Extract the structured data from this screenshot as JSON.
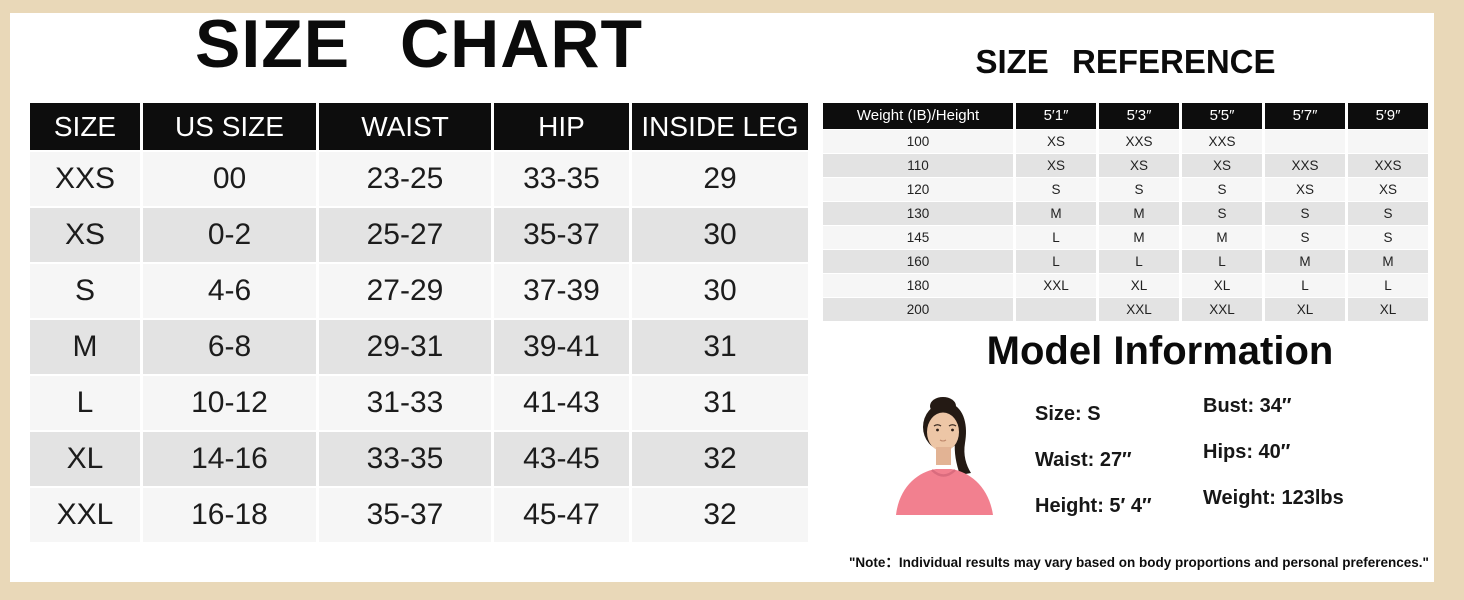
{
  "colors": {
    "frame_background": "#e9d8b8",
    "panel_background": "#ffffff",
    "table_header": "#0d0d0d",
    "row_light": "#f6f6f6",
    "row_dark": "#e3e3e3",
    "model_top_pink": "#f2808f"
  },
  "size_chart": {
    "title": "SIZE CHART",
    "columns": [
      "SIZE",
      "US SIZE",
      "WAIST",
      "HIP",
      "INSIDE LEG"
    ],
    "rows": [
      [
        "XXS",
        "00",
        "23-25",
        "33-35",
        "29"
      ],
      [
        "XS",
        "0-2",
        "25-27",
        "35-37",
        "30"
      ],
      [
        "S",
        "4-6",
        "27-29",
        "37-39",
        "30"
      ],
      [
        "M",
        "6-8",
        "29-31",
        "39-41",
        "31"
      ],
      [
        "L",
        "10-12",
        "31-33",
        "41-43",
        "31"
      ],
      [
        "XL",
        "14-16",
        "33-35",
        "43-45",
        "32"
      ],
      [
        "XXL",
        "16-18",
        "35-37",
        "45-47",
        "32"
      ]
    ]
  },
  "size_reference": {
    "title": "SIZE REFERENCE",
    "columns": [
      "Weight (IB)/Height",
      "5′1″",
      "5′3″",
      "5′5″",
      "5′7″",
      "5′9″"
    ],
    "rows": [
      [
        "100",
        "XS",
        "XXS",
        "XXS",
        "",
        ""
      ],
      [
        "110",
        "XS",
        "XS",
        "XS",
        "XXS",
        "XXS"
      ],
      [
        "120",
        "S",
        "S",
        "S",
        "XS",
        "XS"
      ],
      [
        "130",
        "M",
        "M",
        "S",
        "S",
        "S"
      ],
      [
        "145",
        "L",
        "M",
        "M",
        "S",
        "S"
      ],
      [
        "160",
        "L",
        "L",
        "L",
        "M",
        "M"
      ],
      [
        "180",
        "XXL",
        "XL",
        "XL",
        "L",
        "L"
      ],
      [
        "200",
        "",
        "XXL",
        "XXL",
        "XL",
        "XL"
      ]
    ]
  },
  "model_information": {
    "title": "Model Information",
    "photo_icon": "model-photo",
    "stats": [
      {
        "left": "Size: S",
        "right": "Bust: 34″"
      },
      {
        "left": "Waist: 27″",
        "right": "Hips: 40″"
      },
      {
        "left": "Height: 5′ 4″",
        "right": "Weight: 123lbs"
      }
    ]
  },
  "note": "\"Note：Individual results may vary based on body proportions and personal preferences.\""
}
